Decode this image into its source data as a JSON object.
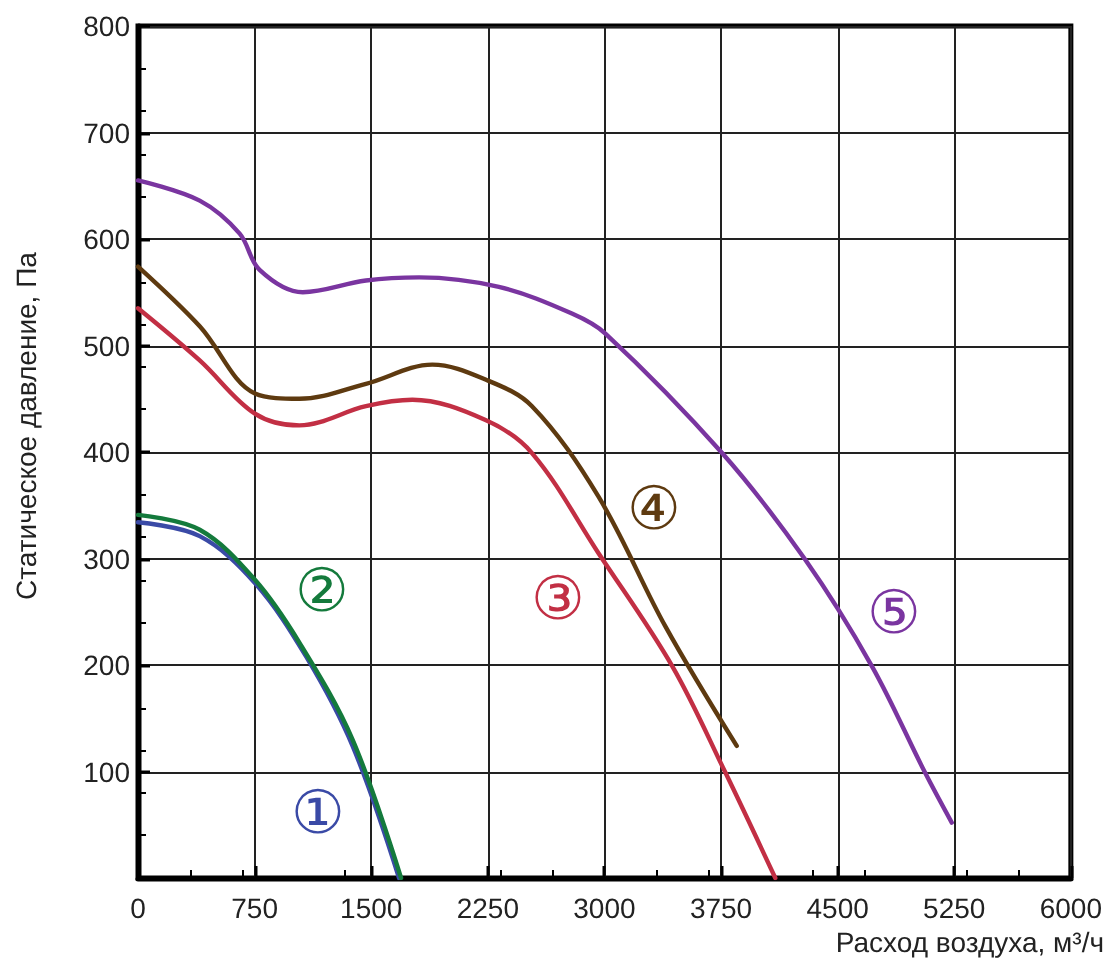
{
  "chart_data": {
    "type": "line",
    "xlabel": "Расход воздуха, м³/ч",
    "ylabel": "Статическое давление, Па",
    "xlim": [
      0,
      6000
    ],
    "xticks": [
      0,
      750,
      1500,
      2250,
      3000,
      3750,
      4500,
      5250,
      6000
    ],
    "ylim": [
      0,
      800
    ],
    "yticks": [
      {
        "value": 0,
        "label": null
      },
      100,
      200,
      300,
      400,
      500,
      600,
      700,
      800
    ],
    "grid": true,
    "marker": "none",
    "line_style": "solid",
    "series": [
      {
        "color": "#3a4aa6",
        "x": [
          0,
          397,
          752,
          1081,
          1380,
          1679
        ],
        "values": [
          334,
          321,
          277,
          208,
          124,
          0
        ]
      },
      {
        "color": "#147a3c",
        "x": [
          0,
          397,
          752,
          1038,
          1380,
          1692
        ],
        "values": [
          341,
          327,
          280,
          221,
          130,
          0
        ]
      },
      {
        "color": "#c22f44",
        "x": [
          0,
          397,
          752,
          1038,
          1466,
          1765,
          2235,
          2534,
          2962,
          3436,
          3778,
          4099
        ],
        "values": [
          535,
          486,
          436,
          425,
          443,
          449,
          430,
          399,
          305,
          199,
          99,
          0
        ]
      },
      {
        "color": "#5e3a10",
        "x": [
          0,
          397,
          752,
          1038,
          1466,
          1893,
          2235,
          2534,
          2962,
          3393,
          3851
        ],
        "values": [
          574,
          518,
          455,
          450,
          464,
          482,
          468,
          443,
          358,
          236,
          124
        ]
      },
      {
        "color": "#7a35a0",
        "x": [
          0,
          397,
          654,
          782,
          1060,
          1466,
          1808,
          2321,
          2791,
          3008,
          3757,
          4291,
          4720,
          5062,
          5234
        ],
        "values": [
          655,
          636,
          605,
          571,
          550,
          561,
          564,
          555,
          530,
          511,
          399,
          299,
          199,
          99,
          52
        ]
      }
    ],
    "annotations": [
      "①",
      "②",
      "③",
      "④",
      "⑤"
    ]
  }
}
